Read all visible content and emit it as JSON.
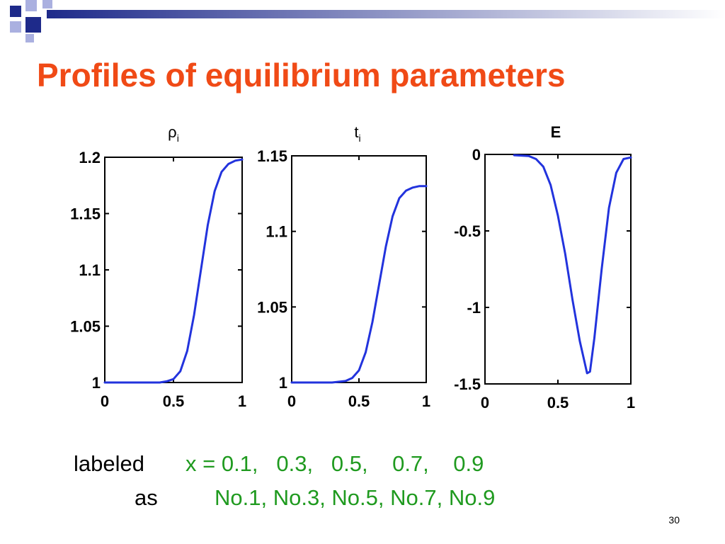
{
  "colors": {
    "title": "#f04a16",
    "caption_green": "#1f9a1f",
    "curve": "#2233dd",
    "deco_navy": "#1e2a8a",
    "deco_light": "#aab0e0"
  },
  "slide": {
    "title": "Profiles of equilibrium parameters",
    "page_number": "30"
  },
  "caption": {
    "line1_label": "labeled",
    "line1_values": "x = 0.1,   0.3,   0.5,    0.7,    0.9",
    "line2_label": "as",
    "line2_values": "No.1, No.3, No.5, No.7, No.9"
  },
  "chart_data": [
    {
      "type": "line",
      "title": "ρi",
      "title_main": "ρ",
      "title_sub": "i",
      "xlabel": "",
      "ylabel": "",
      "xlim": [
        0,
        1
      ],
      "ylim": [
        1,
        1.2
      ],
      "xticks": [
        "0",
        "0.5",
        "1"
      ],
      "yticks": [
        "1",
        "1.05",
        "1.1",
        "1.15",
        "1.2"
      ],
      "grid": false,
      "x": [
        0,
        0.1,
        0.2,
        0.3,
        0.4,
        0.45,
        0.5,
        0.55,
        0.6,
        0.65,
        0.7,
        0.75,
        0.8,
        0.85,
        0.9,
        0.95,
        1.0
      ],
      "y": [
        1.0,
        1.0,
        1.0,
        1.0,
        1.0,
        1.001,
        1.003,
        1.01,
        1.028,
        1.06,
        1.1,
        1.14,
        1.17,
        1.187,
        1.194,
        1.197,
        1.198
      ]
    },
    {
      "type": "line",
      "title": "ti",
      "title_main": "t",
      "title_sub": "i",
      "xlabel": "",
      "ylabel": "",
      "xlim": [
        0,
        1
      ],
      "ylim": [
        1,
        1.15
      ],
      "xticks": [
        "0",
        "0.5",
        "1"
      ],
      "yticks": [
        "1",
        "1.05",
        "1.1",
        "1.15"
      ],
      "grid": false,
      "x": [
        0,
        0.1,
        0.2,
        0.3,
        0.4,
        0.45,
        0.5,
        0.55,
        0.6,
        0.65,
        0.7,
        0.75,
        0.8,
        0.85,
        0.9,
        0.95,
        1.0
      ],
      "y": [
        1.0,
        1.0,
        1.0,
        1.0,
        1.001,
        1.003,
        1.008,
        1.02,
        1.04,
        1.065,
        1.09,
        1.11,
        1.122,
        1.127,
        1.129,
        1.13,
        1.13
      ]
    },
    {
      "type": "line",
      "title": "E",
      "title_main": "E",
      "title_sub": "",
      "xlabel": "",
      "ylabel": "",
      "xlim": [
        0,
        1
      ],
      "ylim": [
        -1.5,
        0
      ],
      "xticks": [
        "0",
        "0.5",
        "1"
      ],
      "yticks": [
        "0",
        "-0.5",
        "-1",
        "-1.5"
      ],
      "grid": false,
      "x": [
        0.2,
        0.3,
        0.35,
        0.4,
        0.45,
        0.5,
        0.55,
        0.6,
        0.65,
        0.7,
        0.72,
        0.75,
        0.8,
        0.85,
        0.9,
        0.95,
        1.0
      ],
      "y": [
        -0.005,
        -0.01,
        -0.03,
        -0.08,
        -0.2,
        -0.4,
        -0.65,
        -0.95,
        -1.22,
        -1.43,
        -1.42,
        -1.2,
        -0.75,
        -0.35,
        -0.12,
        -0.03,
        -0.02
      ]
    }
  ]
}
